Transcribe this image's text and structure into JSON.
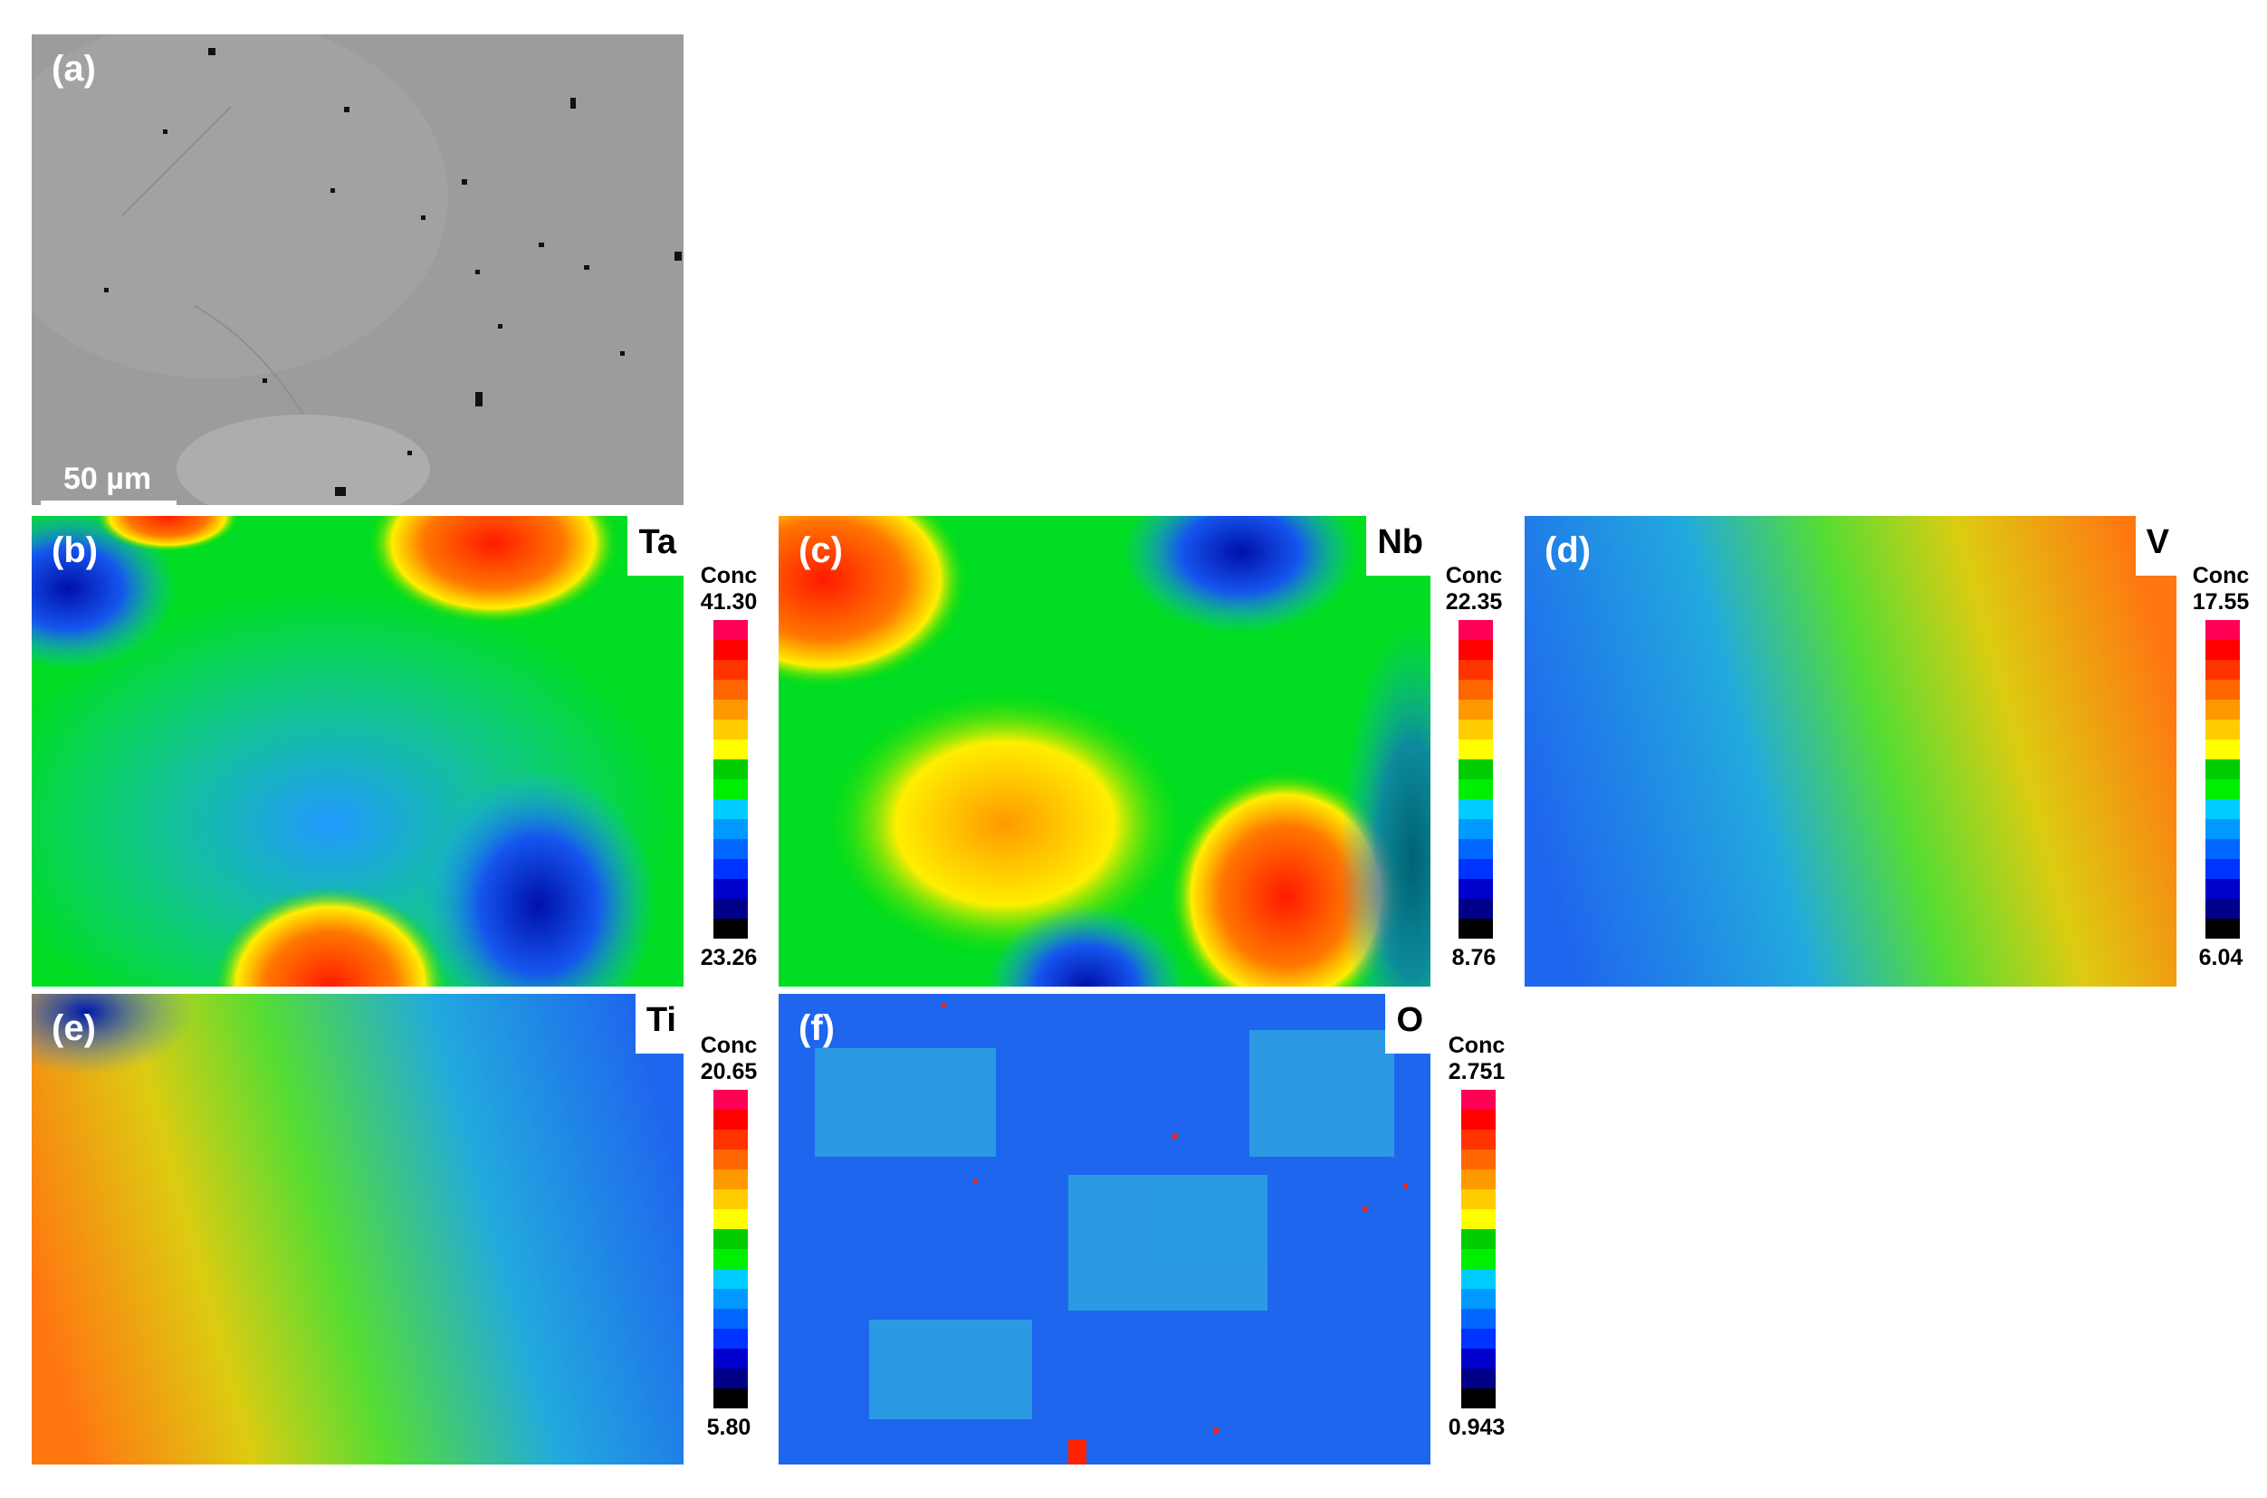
{
  "panels": {
    "a": {
      "label": "(a)",
      "scale_bar": "50 µm"
    },
    "b": {
      "label": "(b)",
      "element": "Ta",
      "legend_title": "Conc",
      "max": "41.30",
      "min": "23.26"
    },
    "c": {
      "label": "(c)",
      "element": "Nb",
      "legend_title": "Conc",
      "max": "22.35",
      "min": "8.76"
    },
    "d": {
      "label": "(d)",
      "element": "V",
      "legend_title": "Conc",
      "max": "17.55",
      "min": "6.04"
    },
    "e": {
      "label": "(e)",
      "element": "Ti",
      "legend_title": "Conc",
      "max": "20.65",
      "min": "5.80"
    },
    "f": {
      "label": "(f)",
      "element": "O",
      "legend_title": "Conc",
      "max": "2.751",
      "min": "0.943"
    }
  },
  "colorscale": [
    "#ff0055",
    "#ff0000",
    "#ff3300",
    "#ff6600",
    "#ff9900",
    "#ffcc00",
    "#ffff00",
    "#00cc00",
    "#00ee00",
    "#00ccff",
    "#0099ff",
    "#0066ff",
    "#0033ff",
    "#0000cc",
    "#000088",
    "#000000"
  ]
}
